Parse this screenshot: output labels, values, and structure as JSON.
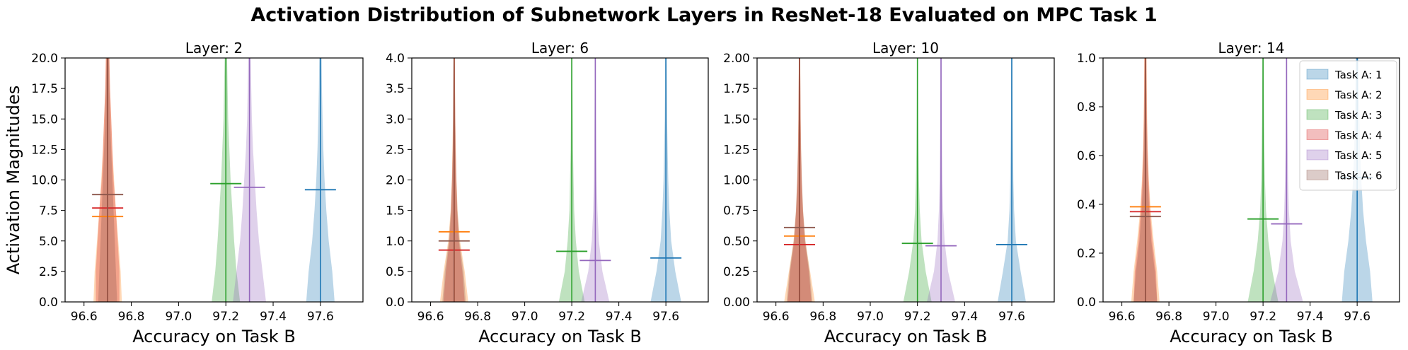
{
  "title": "Activation Distribution of Subnetwork Layers in ResNet-18 Evaluated on MPC Task 1",
  "legend_placement": "top-right (last panel)",
  "chart_data": [
    {
      "type": "violin",
      "title": "Layer: 2",
      "xlabel": "Accuracy on Task B",
      "ylabel": "Activation Magnitudes",
      "xlim": [
        96.52,
        97.78
      ],
      "ylim": [
        0,
        20
      ],
      "xticks": [
        "96.6",
        "96.8",
        "97.0",
        "97.2",
        "97.4",
        "97.6"
      ],
      "yticks": [
        "0.0",
        "2.5",
        "5.0",
        "7.5",
        "10.0",
        "12.5",
        "15.0",
        "17.5",
        "20.0"
      ],
      "grid": false,
      "series": [
        {
          "name": "Task A: 1",
          "color": "#1f77b4",
          "x": 97.6,
          "mean": 9.2,
          "widths": [
            0.12,
            0.1,
            0.07,
            0.05,
            0.035,
            0.025,
            0.018,
            0.013,
            0.01
          ]
        },
        {
          "name": "Task A: 2",
          "color": "#ff7f0e",
          "x": 96.7,
          "mean": 7.0,
          "widths": [
            0.12,
            0.11,
            0.09,
            0.07,
            0.055,
            0.04,
            0.03,
            0.02,
            0.015
          ]
        },
        {
          "name": "Task A: 3",
          "color": "#2ca02c",
          "x": 97.2,
          "mean": 9.7,
          "widths": [
            0.12,
            0.09,
            0.07,
            0.055,
            0.04,
            0.03,
            0.02,
            0.015,
            0.01
          ]
        },
        {
          "name": "Task A: 4",
          "color": "#d62728",
          "x": 96.7,
          "mean": 7.7,
          "widths": [
            0.1,
            0.1,
            0.085,
            0.07,
            0.05,
            0.04,
            0.03,
            0.02,
            0.015
          ]
        },
        {
          "name": "Task A: 5",
          "color": "#9467bd",
          "x": 97.3,
          "mean": 9.4,
          "widths": [
            0.14,
            0.11,
            0.08,
            0.06,
            0.045,
            0.03,
            0.02,
            0.015,
            0.01
          ]
        },
        {
          "name": "Task A: 6",
          "color": "#8c564b",
          "x": 96.7,
          "mean": 8.8,
          "widths": [
            0.08,
            0.07,
            0.06,
            0.05,
            0.04,
            0.03,
            0.02,
            0.015,
            0.01
          ]
        }
      ]
    },
    {
      "type": "violin",
      "title": "Layer: 6",
      "xlabel": "Accuracy on Task B",
      "ylabel": "",
      "xlim": [
        96.52,
        97.78
      ],
      "ylim": [
        0,
        4
      ],
      "xticks": [
        "96.6",
        "96.8",
        "97.0",
        "97.2",
        "97.4",
        "97.6"
      ],
      "yticks": [
        "0.0",
        "0.5",
        "1.0",
        "1.5",
        "2.0",
        "2.5",
        "3.0",
        "3.5",
        "4.0"
      ],
      "grid": false,
      "series": [
        {
          "name": "Task A: 1",
          "color": "#1f77b4",
          "x": 97.6,
          "mean": 0.72,
          "widths": [
            0.13,
            0.08,
            0.045,
            0.03,
            0.02,
            0.015,
            0.01,
            0.008,
            0.006
          ]
        },
        {
          "name": "Task A: 2",
          "color": "#ff7f0e",
          "x": 96.7,
          "mean": 1.15,
          "widths": [
            0.12,
            0.09,
            0.05,
            0.03,
            0.02,
            0.015,
            0.01,
            0.008,
            0.006
          ]
        },
        {
          "name": "Task A: 3",
          "color": "#2ca02c",
          "x": 97.2,
          "mean": 0.83,
          "widths": [
            0.11,
            0.06,
            0.035,
            0.02,
            0.015,
            0.01,
            0.008,
            0.006,
            0.005
          ]
        },
        {
          "name": "Task A: 4",
          "color": "#d62728",
          "x": 96.7,
          "mean": 0.85,
          "widths": [
            0.09,
            0.07,
            0.04,
            0.025,
            0.018,
            0.012,
            0.009,
            0.007,
            0.005
          ]
        },
        {
          "name": "Task A: 5",
          "color": "#9467bd",
          "x": 97.3,
          "mean": 0.68,
          "widths": [
            0.12,
            0.06,
            0.03,
            0.018,
            0.012,
            0.009,
            0.007,
            0.005,
            0.004
          ]
        },
        {
          "name": "Task A: 6",
          "color": "#8c564b",
          "x": 96.7,
          "mean": 1.0,
          "widths": [
            0.1,
            0.08,
            0.045,
            0.028,
            0.018,
            0.012,
            0.009,
            0.007,
            0.005
          ]
        }
      ]
    },
    {
      "type": "violin",
      "title": "Layer: 10",
      "xlabel": "Accuracy on Task B",
      "ylabel": "",
      "xlim": [
        96.52,
        97.78
      ],
      "ylim": [
        0,
        2
      ],
      "xticks": [
        "96.6",
        "96.8",
        "97.0",
        "97.2",
        "97.4",
        "97.6"
      ],
      "yticks": [
        "0.00",
        "0.25",
        "0.50",
        "0.75",
        "1.00",
        "1.25",
        "1.50",
        "1.75",
        "2.00"
      ],
      "grid": false,
      "series": [
        {
          "name": "Task A: 1",
          "color": "#1f77b4",
          "x": 97.6,
          "mean": 0.47,
          "widths": [
            0.12,
            0.075,
            0.035,
            0.02,
            0.013,
            0.01,
            0.008,
            0.006,
            0.005
          ]
        },
        {
          "name": "Task A: 2",
          "color": "#ff7f0e",
          "x": 96.7,
          "mean": 0.54,
          "widths": [
            0.13,
            0.09,
            0.05,
            0.03,
            0.02,
            0.014,
            0.01,
            0.008,
            0.006
          ]
        },
        {
          "name": "Task A: 3",
          "color": "#2ca02c",
          "x": 97.2,
          "mean": 0.48,
          "widths": [
            0.12,
            0.07,
            0.035,
            0.02,
            0.013,
            0.009,
            0.007,
            0.005,
            0.004
          ]
        },
        {
          "name": "Task A: 4",
          "color": "#d62728",
          "x": 96.7,
          "mean": 0.47,
          "widths": [
            0.1,
            0.08,
            0.045,
            0.028,
            0.018,
            0.012,
            0.009,
            0.007,
            0.005
          ]
        },
        {
          "name": "Task A: 5",
          "color": "#9467bd",
          "x": 97.3,
          "mean": 0.46,
          "widths": [
            0.12,
            0.06,
            0.03,
            0.018,
            0.012,
            0.009,
            0.007,
            0.005,
            0.004
          ]
        },
        {
          "name": "Task A: 6",
          "color": "#8c564b",
          "x": 96.7,
          "mean": 0.61,
          "widths": [
            0.11,
            0.085,
            0.05,
            0.03,
            0.02,
            0.013,
            0.009,
            0.007,
            0.005
          ]
        }
      ]
    },
    {
      "type": "violin",
      "title": "Layer: 14",
      "xlabel": "Accuracy on Task B",
      "ylabel": "",
      "xlim": [
        96.52,
        97.78
      ],
      "ylim": [
        0,
        1
      ],
      "xticks": [
        "96.6",
        "96.8",
        "97.0",
        "97.2",
        "97.4",
        "97.6"
      ],
      "yticks": [
        "0.0",
        "0.2",
        "0.4",
        "0.6",
        "0.8",
        "1.0"
      ],
      "grid": false,
      "series": [
        {
          "name": "Task A: 1",
          "color": "#1f77b4",
          "x": 97.6,
          "mean": 0.51,
          "widths": [
            0.13,
            0.11,
            0.075,
            0.05,
            0.035,
            0.025,
            0.02,
            0.015,
            0.012
          ]
        },
        {
          "name": "Task A: 2",
          "color": "#ff7f0e",
          "x": 96.7,
          "mean": 0.39,
          "widths": [
            0.12,
            0.1,
            0.07,
            0.045,
            0.03,
            0.02,
            0.015,
            0.012,
            0.01
          ]
        },
        {
          "name": "Task A: 3",
          "color": "#2ca02c",
          "x": 97.2,
          "mean": 0.34,
          "widths": [
            0.13,
            0.08,
            0.045,
            0.025,
            0.016,
            0.012,
            0.009,
            0.007,
            0.005
          ]
        },
        {
          "name": "Task A: 4",
          "color": "#d62728",
          "x": 96.7,
          "mean": 0.37,
          "widths": [
            0.1,
            0.09,
            0.06,
            0.04,
            0.027,
            0.018,
            0.013,
            0.01,
            0.008
          ]
        },
        {
          "name": "Task A: 5",
          "color": "#9467bd",
          "x": 97.3,
          "mean": 0.32,
          "widths": [
            0.14,
            0.07,
            0.035,
            0.02,
            0.013,
            0.009,
            0.007,
            0.005,
            0.004
          ]
        },
        {
          "name": "Task A: 6",
          "color": "#8c564b",
          "x": 96.7,
          "mean": 0.35,
          "widths": [
            0.1,
            0.08,
            0.05,
            0.032,
            0.021,
            0.014,
            0.01,
            0.008,
            0.006
          ]
        }
      ]
    }
  ]
}
